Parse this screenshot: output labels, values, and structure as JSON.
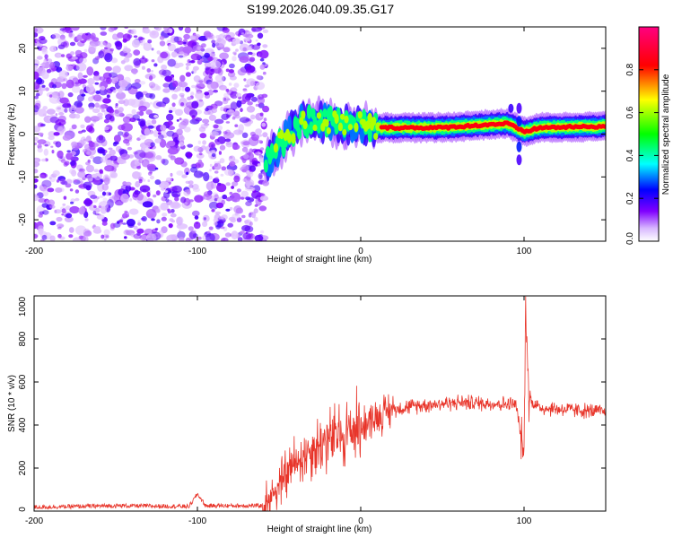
{
  "figure": {
    "title": "S199.2026.040.09.35.G17"
  },
  "chart_data": [
    {
      "type": "heatmap",
      "xlabel": "Height of straight line (km)",
      "ylabel": "Frequency (Hz)",
      "xlim": [
        -200,
        150
      ],
      "ylim": [
        -25,
        25
      ],
      "xticks": [
        -200,
        -100,
        0,
        100
      ],
      "yticks": [
        -20,
        -10,
        0,
        10,
        20
      ],
      "colorbar": {
        "label": "Normalized spectral amplitude",
        "range": [
          0,
          1
        ],
        "ticks": [
          0.0,
          0.2,
          0.4,
          0.6,
          0.8
        ],
        "tick_labels": [
          "0.0",
          "0.2",
          "0.4",
          "0.6",
          "0.8"
        ],
        "colormap": [
          "#ffffff",
          "#8000ff",
          "#0000ff",
          "#00ffff",
          "#00ff00",
          "#ffff00",
          "#ff0000",
          "#ff00a0"
        ]
      },
      "regions": [
        {
          "name": "noise",
          "x_range": [
            -200,
            -58
          ],
          "amplitude_range": [
            0.0,
            0.2
          ]
        },
        {
          "name": "signal-trace",
          "x_range": [
            -58,
            150
          ],
          "amplitude_range": [
            0.2,
            1.0
          ],
          "ridge": [
            [
              -58,
              -7
            ],
            [
              -52,
              -4
            ],
            [
              -45,
              0
            ],
            [
              -35,
              3
            ],
            [
              -20,
              3
            ],
            [
              -10,
              2
            ],
            [
              0,
              2
            ],
            [
              10,
              1.5
            ],
            [
              50,
              1.5
            ],
            [
              90,
              2.5
            ],
            [
              100,
              0.5
            ],
            [
              110,
              1.5
            ],
            [
              150,
              1.8
            ]
          ]
        }
      ]
    },
    {
      "type": "line",
      "xlabel": "Height of straight line (km)",
      "ylabel": "SNR (10 * v/v)",
      "xlim": [
        -200,
        150
      ],
      "ylim": [
        0,
        1000
      ],
      "xticks": [
        -200,
        -100,
        0,
        100
      ],
      "yticks": [
        0,
        200,
        400,
        600,
        800,
        1000
      ],
      "line_color": "#e8352a",
      "trend": [
        [
          -200,
          18
        ],
        [
          -150,
          25
        ],
        [
          -105,
          22
        ],
        [
          -100,
          80
        ],
        [
          -95,
          25
        ],
        [
          -60,
          25
        ],
        [
          -50,
          120
        ],
        [
          -40,
          230
        ],
        [
          -30,
          290
        ],
        [
          -20,
          330
        ],
        [
          -10,
          360
        ],
        [
          0,
          400
        ],
        [
          10,
          440
        ],
        [
          20,
          475
        ],
        [
          40,
          495
        ],
        [
          60,
          505
        ],
        [
          80,
          500
        ],
        [
          95,
          495
        ],
        [
          100,
          260
        ],
        [
          101,
          980
        ],
        [
          103,
          520
        ],
        [
          110,
          480
        ],
        [
          130,
          470
        ],
        [
          150,
          460
        ]
      ]
    }
  ]
}
